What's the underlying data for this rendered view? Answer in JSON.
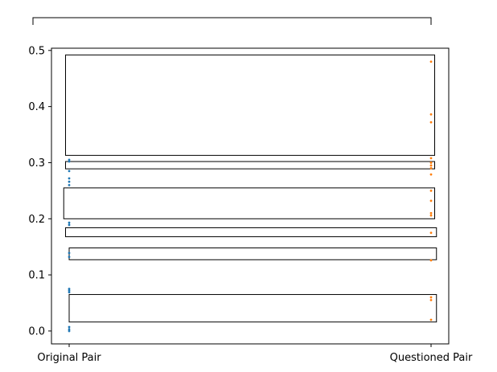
{
  "chart_data": {
    "type": "scatter",
    "title": "",
    "xlabel": "",
    "ylabel": "",
    "categories": [
      "Original Pair",
      "Questioned Pair"
    ],
    "ylim": [
      -0.023,
      0.504
    ],
    "yticks": [
      0.0,
      0.1,
      0.2,
      0.3,
      0.4,
      0.5
    ],
    "ytick_labels": [
      "0.0",
      "0.1",
      "0.2",
      "0.3",
      "0.4",
      "0.5"
    ],
    "grid": false,
    "legend": "none",
    "series": [
      {
        "color": "#1f77b4",
        "category": "Original Pair",
        "values": [
          0.305,
          0.302,
          0.285,
          0.272,
          0.266,
          0.26,
          0.193,
          0.189,
          0.139,
          0.132,
          0.075,
          0.072,
          0.069,
          0.007,
          0.003,
          0.0
        ]
      },
      {
        "color": "#ff7f0e",
        "category": "Questioned Pair",
        "values": [
          0.48,
          0.386,
          0.372,
          0.308,
          0.3,
          0.295,
          0.29,
          0.279,
          0.25,
          0.232,
          0.21,
          0.206,
          0.175,
          0.126,
          0.06,
          0.055,
          0.02
        ]
      }
    ],
    "boxes": [
      {
        "x_from": -0.01,
        "x_to": 1.01,
        "y_from": 0.313,
        "y_to": 0.492
      },
      {
        "x_from": -0.01,
        "x_to": 1.01,
        "y_from": 0.289,
        "y_to": 0.302
      },
      {
        "x_from": -0.015,
        "x_to": 1.01,
        "y_from": 0.2,
        "y_to": 0.255
      },
      {
        "x_from": -0.01,
        "x_to": 1.015,
        "y_from": 0.168,
        "y_to": 0.184
      },
      {
        "x_from": 0.0,
        "x_to": 1.015,
        "y_from": 0.127,
        "y_to": 0.148
      },
      {
        "x_from": 0.0,
        "x_to": 1.015,
        "y_from": 0.016,
        "y_to": 0.065
      }
    ],
    "top_bracket": {
      "x_from": -0.1,
      "x_to": 1.0
    }
  }
}
